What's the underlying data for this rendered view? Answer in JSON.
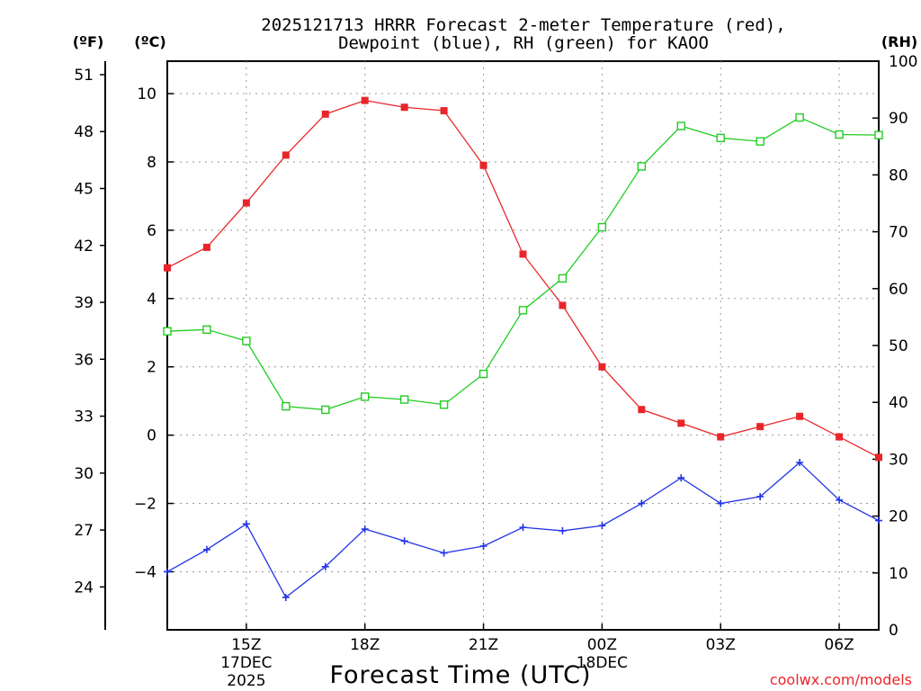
{
  "chart_data": {
    "type": "line",
    "title_line1": "2025121713 HRRR Forecast 2-meter Temperature (red),",
    "title_line2": "Dewpoint (blue), RH (green) for KAOO",
    "xlabel": "Forecast Time (UTC)",
    "credit": "coolwx.com/models",
    "axis_units": {
      "fahrenheit": "(ºF)",
      "celsius": "(ºC)",
      "rh": "(RH)"
    },
    "x_hours": [
      13,
      14,
      15,
      16,
      17,
      18,
      19,
      20,
      21,
      22,
      23,
      24,
      25,
      26,
      27,
      28,
      29,
      30,
      31
    ],
    "xlim": [
      13,
      31
    ],
    "x_ticks": [
      {
        "hour": 15,
        "label": "15Z",
        "sub1": "17DEC",
        "sub2": "2025"
      },
      {
        "hour": 18,
        "label": "18Z",
        "sub1": "",
        "sub2": ""
      },
      {
        "hour": 21,
        "label": "21Z",
        "sub1": "",
        "sub2": ""
      },
      {
        "hour": 24,
        "label": "00Z",
        "sub1": "18DEC",
        "sub2": ""
      },
      {
        "hour": 27,
        "label": "03Z",
        "sub1": "",
        "sub2": ""
      },
      {
        "hour": 30,
        "label": "06Z",
        "sub1": "",
        "sub2": ""
      }
    ],
    "celsius_axis": {
      "ylim": [
        -5.7,
        10.95
      ],
      "ticks": [
        "10",
        "8",
        "6",
        "4",
        "2",
        "0",
        "−2",
        "−4"
      ]
    },
    "fahrenheit_axis": {
      "ticks": [
        "51",
        "48",
        "45",
        "42",
        "39",
        "36",
        "33",
        "30",
        "27",
        "24"
      ]
    },
    "rh_axis": {
      "ylim": [
        0,
        100
      ],
      "ticks": [
        "100",
        "90",
        "80",
        "70",
        "60",
        "50",
        "40",
        "30",
        "20",
        "10",
        "0"
      ]
    },
    "series": [
      {
        "name": "Temperature",
        "axis": "celsius",
        "color": "#e8262a",
        "marker": "filled-square",
        "values": [
          4.9,
          5.5,
          6.8,
          8.2,
          9.4,
          9.8,
          9.6,
          9.5,
          7.9,
          5.3,
          3.8,
          2.0,
          0.75,
          0.35,
          -0.05,
          0.25,
          0.55,
          -0.05,
          -0.65
        ]
      },
      {
        "name": "Dewpoint",
        "axis": "celsius",
        "color": "#2233e6",
        "marker": "plus",
        "values": [
          -4.0,
          -3.35,
          -2.6,
          -4.75,
          -3.85,
          -2.75,
          -3.1,
          -3.45,
          -3.25,
          -2.7,
          -2.8,
          -2.65,
          -2.0,
          -1.25,
          -2.0,
          -1.8,
          -0.8,
          -1.9,
          -2.5
        ]
      },
      {
        "name": "RH",
        "axis": "rh",
        "color": "#22cc22",
        "marker": "open-square",
        "values": [
          52.5,
          52.8,
          50.8,
          39.3,
          38.7,
          41.0,
          40.5,
          39.6,
          45.0,
          56.2,
          61.8,
          70.8,
          81.5,
          88.6,
          86.5,
          85.9,
          90.1,
          87.1,
          87.0
        ]
      }
    ]
  }
}
